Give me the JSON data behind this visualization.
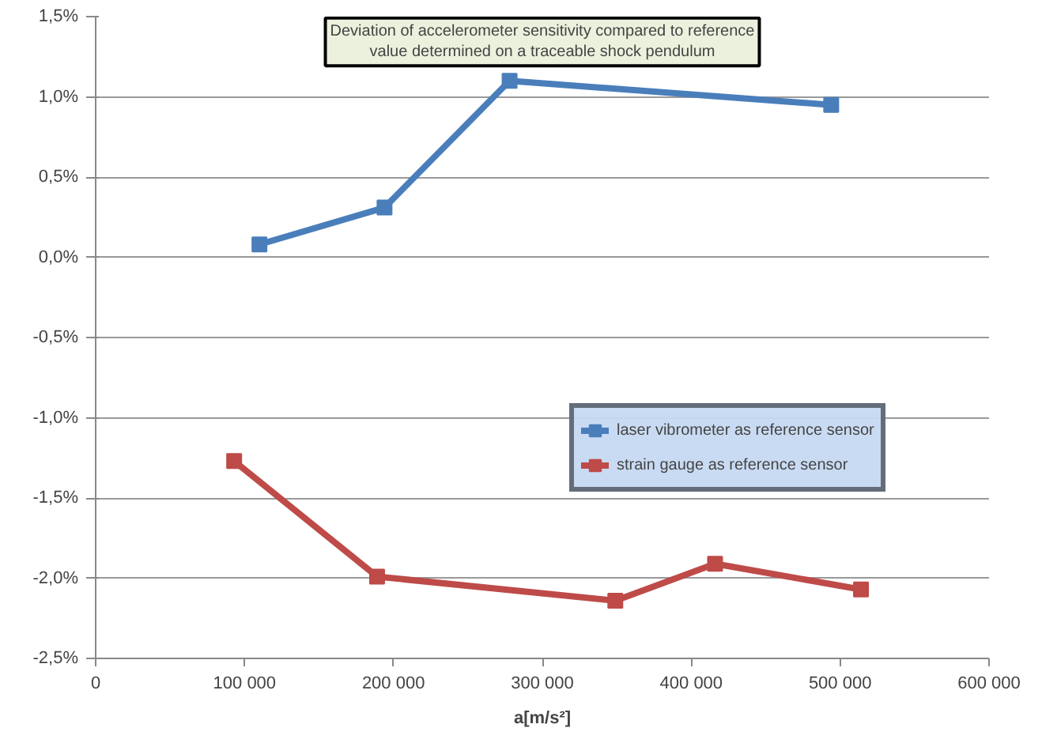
{
  "chart_data": {
    "type": "line",
    "title": "Deviation of accelerometer sensitivity compared to reference\nvalue determined on a traceable shock pendulum",
    "xlabel": "a[m/s²]",
    "series": [
      {
        "name": "laser vibrometer as reference sensor",
        "color": "#4a7ebb",
        "x": [
          110000,
          194000,
          278000,
          494000
        ],
        "values": [
          0.08,
          0.31,
          1.1,
          0.95
        ]
      },
      {
        "name": "strain gauge as reference sensor",
        "color": "#be4b48",
        "x": [
          93000,
          189000,
          349000,
          416000,
          514000
        ],
        "values": [
          -1.27,
          -1.99,
          -2.14,
          -1.91,
          -2.07
        ]
      }
    ],
    "xlim": [
      0,
      600000
    ],
    "xticks": [
      {
        "value": 0,
        "label": "0"
      },
      {
        "value": 100000,
        "label": "100 000"
      },
      {
        "value": 200000,
        "label": "200 000"
      },
      {
        "value": 300000,
        "label": "300 000"
      },
      {
        "value": 400000,
        "label": "400 000"
      },
      {
        "value": 500000,
        "label": "500 000"
      },
      {
        "value": 600000,
        "label": "600 000"
      }
    ],
    "ylim": [
      -2.5,
      1.5
    ],
    "yticks": [
      {
        "value": -2.5,
        "label": "-2,5%"
      },
      {
        "value": -2.0,
        "label": "-2,0%"
      },
      {
        "value": -1.5,
        "label": "-1,5%"
      },
      {
        "value": -1.0,
        "label": "-1,0%"
      },
      {
        "value": -0.5,
        "label": "-0,5%"
      },
      {
        "value": 0,
        "label": "0,0%"
      },
      {
        "value": 0.5,
        "label": "0,5%"
      },
      {
        "value": 1.0,
        "label": "1,0%"
      },
      {
        "value": 1.5,
        "label": "1,5%"
      }
    ],
    "grid": "y",
    "legend": "right",
    "marker": "square",
    "line_style": "solid"
  }
}
